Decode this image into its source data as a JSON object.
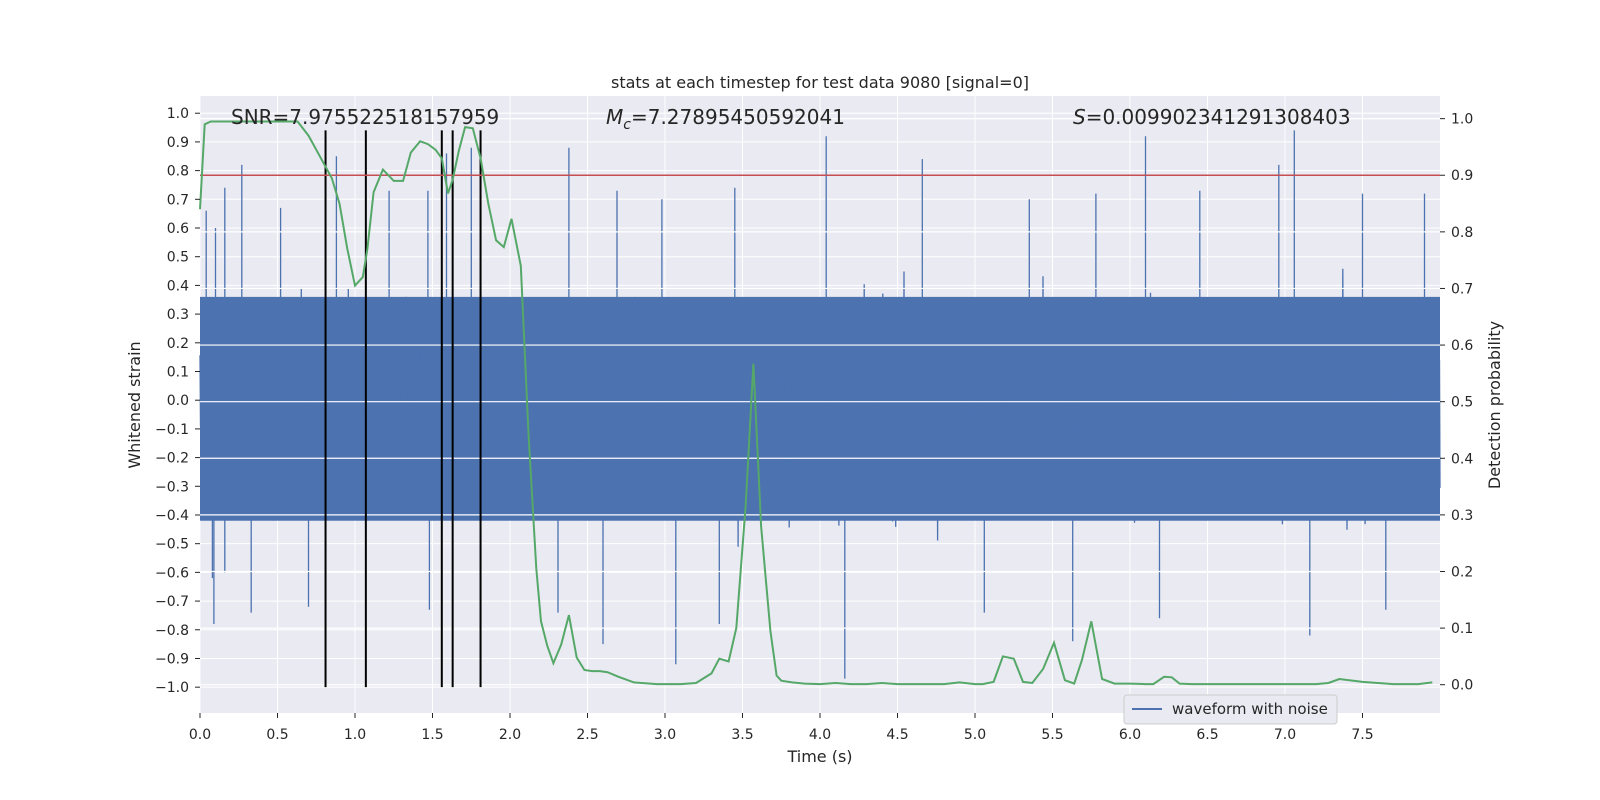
{
  "chart_data": {
    "type": "line",
    "title": "stats at each timestep for test data 9080 [signal=0]",
    "xlabel": "Time (s)",
    "ylabel_left": "Whitened strain",
    "ylabel_right": "Detection probability",
    "xlim": [
      0.0,
      8.0
    ],
    "ylim_left": [
      -1.09,
      1.06
    ],
    "ylim_right": [
      -0.05,
      1.04
    ],
    "x_ticks": [
      "0.0",
      "0.5",
      "1.0",
      "1.5",
      "2.0",
      "2.5",
      "3.0",
      "3.5",
      "4.0",
      "4.5",
      "5.0",
      "5.5",
      "6.0",
      "6.5",
      "7.0",
      "7.5"
    ],
    "y_left_ticks": [
      "1.0",
      "0.9",
      "0.8",
      "0.7",
      "0.6",
      "0.5",
      "0.4",
      "0.3",
      "0.2",
      "0.1",
      "0.0",
      "−0.1",
      "−0.2",
      "−0.3",
      "−0.4",
      "−0.5",
      "−0.6",
      "−0.7",
      "−0.8",
      "−0.9",
      "−1.0"
    ],
    "y_right_ticks": [
      "1.0",
      "0.9",
      "0.8",
      "0.7",
      "0.6",
      "0.5",
      "0.4",
      "0.3",
      "0.2",
      "0.1",
      "0.0"
    ],
    "annotations": {
      "snr": "SNR=7.975522518157959",
      "mc_symbol": "M",
      "mc_subscript": "c",
      "mc_value": "=7.27895450592041",
      "s_symbol": "S",
      "s_value": "=0.009902341291308403"
    },
    "threshold": {
      "value": 0.9,
      "axis": "right",
      "color": "#c44e52"
    },
    "event_lines": {
      "x": [
        0.81,
        1.07,
        1.56,
        1.63,
        1.81
      ],
      "y_range": [
        -1.0,
        0.94
      ],
      "color": "#000000"
    },
    "series": [
      {
        "name": "waveform with noise",
        "axis": "left",
        "color": "#4c72b0",
        "style": "dense noisy strain trace",
        "band": [
          -0.42,
          0.36
        ],
        "peaks": [
          {
            "x": 0.04,
            "y": 0.66
          },
          {
            "x": 0.1,
            "y": 0.6
          },
          {
            "x": 0.16,
            "y": 0.74
          },
          {
            "x": 0.27,
            "y": 0.82
          },
          {
            "x": 0.52,
            "y": 0.67
          },
          {
            "x": 0.88,
            "y": 0.85
          },
          {
            "x": 1.22,
            "y": 0.73
          },
          {
            "x": 1.47,
            "y": 0.73
          },
          {
            "x": 1.59,
            "y": 0.86
          },
          {
            "x": 1.75,
            "y": 0.88
          },
          {
            "x": 2.38,
            "y": 0.88
          },
          {
            "x": 2.69,
            "y": 0.73
          },
          {
            "x": 2.98,
            "y": 0.7
          },
          {
            "x": 3.45,
            "y": 0.74
          },
          {
            "x": 4.04,
            "y": 0.92
          },
          {
            "x": 4.66,
            "y": 0.84
          },
          {
            "x": 5.35,
            "y": 0.7
          },
          {
            "x": 5.78,
            "y": 0.72
          },
          {
            "x": 6.1,
            "y": 0.92
          },
          {
            "x": 6.45,
            "y": 0.73
          },
          {
            "x": 6.96,
            "y": 0.82
          },
          {
            "x": 7.06,
            "y": 0.94
          },
          {
            "x": 7.5,
            "y": 0.72
          },
          {
            "x": 7.9,
            "y": 0.72
          }
        ],
        "troughs": [
          {
            "x": 0.08,
            "y": -0.62
          },
          {
            "x": 0.09,
            "y": -0.78
          },
          {
            "x": 0.16,
            "y": -0.6
          },
          {
            "x": 0.33,
            "y": -0.74
          },
          {
            "x": 0.7,
            "y": -0.72
          },
          {
            "x": 1.48,
            "y": -0.73
          },
          {
            "x": 2.31,
            "y": -0.74
          },
          {
            "x": 2.6,
            "y": -0.85
          },
          {
            "x": 3.07,
            "y": -0.92
          },
          {
            "x": 3.35,
            "y": -0.78
          },
          {
            "x": 4.16,
            "y": -0.97
          },
          {
            "x": 5.06,
            "y": -0.74
          },
          {
            "x": 5.63,
            "y": -0.84
          },
          {
            "x": 6.19,
            "y": -0.76
          },
          {
            "x": 7.16,
            "y": -0.82
          },
          {
            "x": 7.65,
            "y": -0.73
          }
        ]
      },
      {
        "name": "",
        "axis": "right",
        "color": "#55a868",
        "x": [
          0.0,
          0.03,
          0.07,
          0.15,
          0.25,
          0.35,
          0.45,
          0.55,
          0.63,
          0.7,
          0.75,
          0.8,
          0.85,
          0.9,
          0.95,
          1.0,
          1.05,
          1.08,
          1.12,
          1.18,
          1.25,
          1.31,
          1.36,
          1.42,
          1.47,
          1.52,
          1.56,
          1.6,
          1.63,
          1.67,
          1.71,
          1.76,
          1.81,
          1.86,
          1.91,
          1.96,
          2.01,
          2.07,
          2.12,
          2.17,
          2.2,
          2.24,
          2.28,
          2.33,
          2.38,
          2.43,
          2.48,
          2.53,
          2.58,
          2.63,
          2.7,
          2.8,
          2.95,
          3.1,
          3.2,
          3.3,
          3.35,
          3.41,
          3.46,
          3.52,
          3.57,
          3.62,
          3.68,
          3.72,
          3.75,
          3.82,
          3.9,
          4.0,
          4.1,
          4.2,
          4.3,
          4.4,
          4.5,
          4.6,
          4.7,
          4.8,
          4.9,
          5.0,
          5.05,
          5.12,
          5.18,
          5.25,
          5.31,
          5.37,
          5.44,
          5.51,
          5.58,
          5.64,
          5.69,
          5.75,
          5.82,
          5.9,
          6.0,
          6.1,
          6.15,
          6.22,
          6.27,
          6.32,
          6.4,
          6.5,
          6.7,
          6.9,
          7.1,
          7.2,
          7.28,
          7.35,
          7.5,
          7.7,
          7.86,
          7.95
        ],
        "values": [
          0.84,
          0.99,
          0.995,
          0.995,
          0.995,
          0.995,
          0.995,
          0.995,
          0.995,
          0.97,
          0.945,
          0.92,
          0.895,
          0.85,
          0.77,
          0.705,
          0.72,
          0.77,
          0.87,
          0.91,
          0.89,
          0.89,
          0.94,
          0.96,
          0.955,
          0.945,
          0.93,
          0.868,
          0.892,
          0.943,
          0.985,
          0.983,
          0.93,
          0.85,
          0.785,
          0.773,
          0.823,
          0.74,
          0.44,
          0.205,
          0.112,
          0.069,
          0.038,
          0.071,
          0.123,
          0.048,
          0.026,
          0.024,
          0.024,
          0.022,
          0.014,
          0.004,
          0.001,
          0.001,
          0.003,
          0.02,
          0.046,
          0.041,
          0.1,
          0.315,
          0.567,
          0.28,
          0.095,
          0.016,
          0.007,
          0.004,
          0.002,
          0.001,
          0.003,
          0.001,
          0.001,
          0.003,
          0.001,
          0.001,
          0.001,
          0.001,
          0.004,
          0.001,
          0.001,
          0.005,
          0.05,
          0.046,
          0.005,
          0.003,
          0.028,
          0.074,
          0.008,
          0.002,
          0.044,
          0.112,
          0.01,
          0.002,
          0.002,
          0.001,
          0.001,
          0.014,
          0.013,
          0.002,
          0.001,
          0.001,
          0.001,
          0.001,
          0.001,
          0.001,
          0.003,
          0.01,
          0.005,
          0.001,
          0.001,
          0.004
        ]
      }
    ],
    "legend": {
      "placement": "lower-right",
      "entries": [
        "waveform with noise"
      ]
    },
    "style": {
      "background": "#eaeaf2",
      "grid": true,
      "grid_color": "#ffffff"
    }
  }
}
